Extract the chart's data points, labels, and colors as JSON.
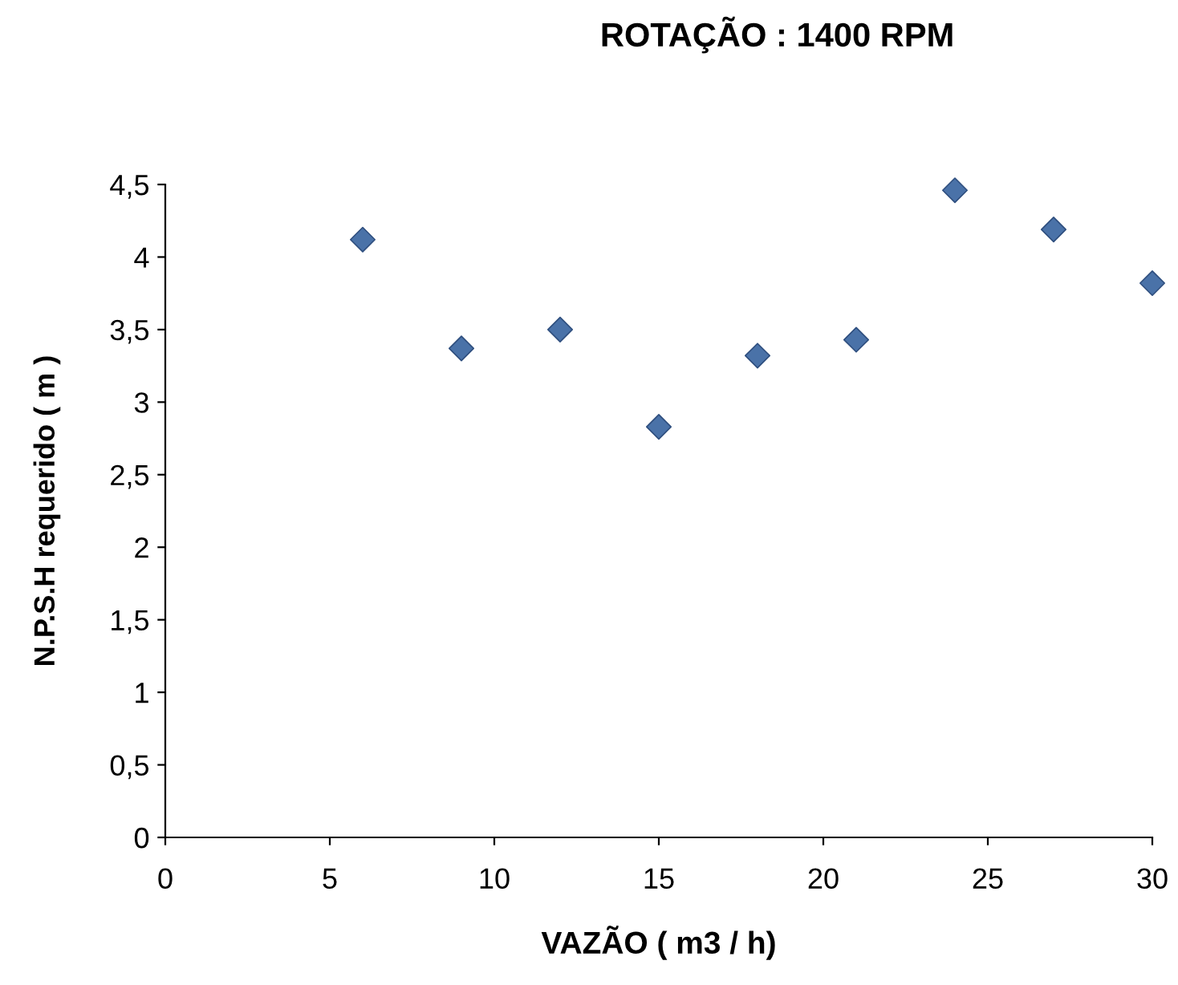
{
  "chart_data": {
    "type": "scatter",
    "title": "ROTAÇÃO : 1400 RPM",
    "xlabel": "VAZÃO ( m3 / h)",
    "ylabel": "N.P.S.H requerido ( m )",
    "x": [
      6,
      9,
      12,
      15,
      18,
      21,
      24,
      27,
      30
    ],
    "series": [
      {
        "color": "#4a72a8",
        "values": [
          4.12,
          3.37,
          3.5,
          2.83,
          3.32,
          3.43,
          4.46,
          4.19,
          3.82
        ]
      }
    ],
    "marker": "diamond",
    "grid": false,
    "legend": false,
    "xlim": [
      0,
      30
    ],
    "xticks": [
      0,
      5,
      10,
      15,
      20,
      25,
      30
    ],
    "ylim": [
      0,
      4.5
    ],
    "yticks": [
      0,
      {
        "value": 0.5,
        "label": "0,5"
      },
      1,
      {
        "value": 1.5,
        "label": "1,5"
      },
      2,
      {
        "value": 2.5,
        "label": "2,5"
      },
      3,
      {
        "value": 3.5,
        "label": "3,5"
      },
      4,
      {
        "value": 4.5,
        "label": "4,5"
      }
    ]
  }
}
